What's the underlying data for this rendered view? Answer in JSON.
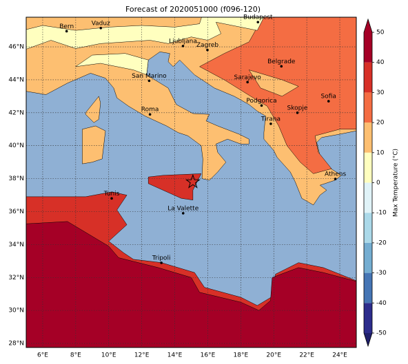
{
  "map": {
    "title": "Forecast of 2020051000 (f096-120)",
    "lonlim": [
      5,
      25
    ],
    "latlim": [
      27.75,
      47.8
    ],
    "lonticks": [
      {
        "value": 6,
        "label": "6°E"
      },
      {
        "value": 8,
        "label": "8°E"
      },
      {
        "value": 10,
        "label": "10°E"
      },
      {
        "value": 12,
        "label": "12°E"
      },
      {
        "value": 14,
        "label": "14°E"
      },
      {
        "value": 16,
        "label": "16°E"
      },
      {
        "value": 18,
        "label": "18°E"
      },
      {
        "value": 20,
        "label": "20°E"
      },
      {
        "value": 22,
        "label": "22°E"
      },
      {
        "value": 24,
        "label": "24°E"
      }
    ],
    "latticks": [
      {
        "value": 28,
        "label": "28°N"
      },
      {
        "value": 30,
        "label": "30°N"
      },
      {
        "value": 32,
        "label": "32°N"
      },
      {
        "value": 34,
        "label": "34°N"
      },
      {
        "value": 36,
        "label": "36°N"
      },
      {
        "value": 38,
        "label": "38°N"
      },
      {
        "value": 40,
        "label": "40°N"
      },
      {
        "value": 42,
        "label": "42°N"
      },
      {
        "value": 44,
        "label": "44°N"
      },
      {
        "value": 46,
        "label": "46°N"
      }
    ],
    "grid": true,
    "cities": [
      {
        "name": "Bern",
        "lon": 7.45,
        "lat": 46.95
      },
      {
        "name": "Vaduz",
        "lon": 9.52,
        "lat": 47.14
      },
      {
        "name": "Budapest",
        "lon": 19.04,
        "lat": 47.5
      },
      {
        "name": "Ljubljana",
        "lon": 14.5,
        "lat": 46.05
      },
      {
        "name": "Zagreb",
        "lon": 15.98,
        "lat": 45.81
      },
      {
        "name": "Belgrade",
        "lon": 20.46,
        "lat": 44.82
      },
      {
        "name": "San Marino",
        "lon": 12.45,
        "lat": 43.94
      },
      {
        "name": "Sarajevo",
        "lon": 18.41,
        "lat": 43.86
      },
      {
        "name": "Sofia",
        "lon": 23.32,
        "lat": 42.7
      },
      {
        "name": "Podgorica",
        "lon": 19.26,
        "lat": 42.44
      },
      {
        "name": "Skopje",
        "lon": 21.43,
        "lat": 42.0
      },
      {
        "name": "Roma",
        "lon": 12.5,
        "lat": 41.9
      },
      {
        "name": "Tirana",
        "lon": 19.82,
        "lat": 41.33
      },
      {
        "name": "Athens",
        "lon": 23.73,
        "lat": 37.98
      },
      {
        "name": "Tunis",
        "lon": 10.18,
        "lat": 36.8
      },
      {
        "name": "La Valette",
        "lon": 14.51,
        "lat": 35.9
      },
      {
        "name": "Tripoli",
        "lon": 13.19,
        "lat": 32.89
      }
    ],
    "colorbar": {
      "label": "Max Temperature (°C)",
      "lim": [
        -50,
        50
      ],
      "ticks": [
        -50,
        -40,
        -30,
        -20,
        -10,
        0,
        10,
        20,
        30,
        40,
        50
      ],
      "colors": [
        "#2c2c8c",
        "#4575b4",
        "#74add1",
        "#abd9e9",
        "#e0f3f8",
        "#ffffbf",
        "#fdbf71",
        "#f46d43",
        "#d73027",
        "#a50026"
      ],
      "under_color": "#1f1f6b",
      "over_color": "#a50026"
    }
  }
}
